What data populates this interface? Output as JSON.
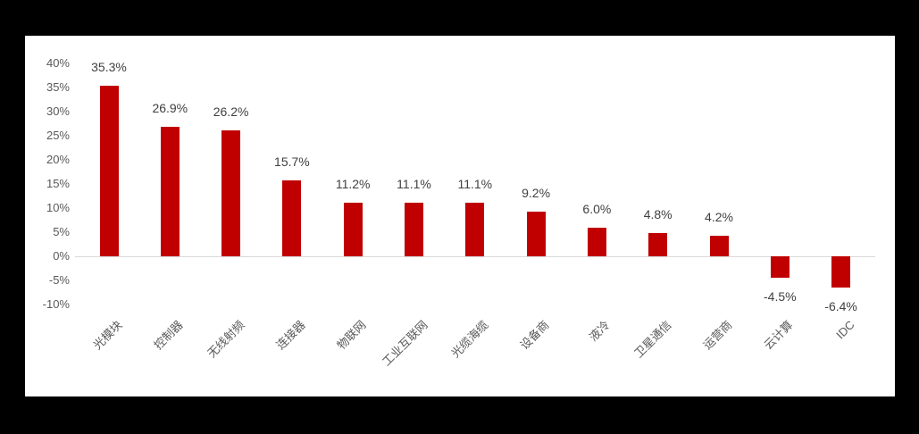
{
  "chart_data": {
    "type": "bar",
    "title": "",
    "xlabel": "",
    "ylabel": "",
    "categories": [
      "光模块",
      "控制器",
      "无线射频",
      "连接器",
      "物联网",
      "工业互联网",
      "光缆海缆",
      "设备商",
      "液冷",
      "卫星通信",
      "运营商",
      "云计算",
      "IDC"
    ],
    "values": [
      35.3,
      26.9,
      26.2,
      15.7,
      11.2,
      11.1,
      11.1,
      9.2,
      6.0,
      4.8,
      4.2,
      -4.5,
      -6.4
    ],
    "data_labels": [
      "35.3%",
      "26.9%",
      "26.2%",
      "15.7%",
      "11.2%",
      "11.1%",
      "11.1%",
      "9.2%",
      "6.0%",
      "4.8%",
      "4.2%",
      "-4.5%",
      "-6.4%"
    ],
    "ylim": [
      -10,
      40
    ],
    "ytick_step": 5,
    "ytick_labels": [
      "40%",
      "35%",
      "30%",
      "25%",
      "20%",
      "15%",
      "10%",
      "5%",
      "0%",
      "-5%",
      "-10%"
    ],
    "grid": false,
    "legend": "none",
    "bar_color": "#c00000",
    "zero_line_color": "#d9d9d9",
    "tick_label_color": "#595959",
    "data_label_color": "#404040",
    "panel_background": "#ffffff",
    "outer_background": "#000000"
  }
}
